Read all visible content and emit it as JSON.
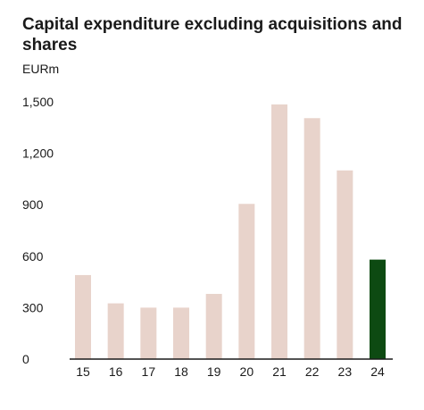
{
  "chart_data": {
    "type": "bar",
    "title": "Capital expenditure excluding acquisitions and shares",
    "ylabel": "EURm",
    "xlabel": "",
    "categories": [
      "15",
      "16",
      "17",
      "18",
      "19",
      "20",
      "21",
      "22",
      "23",
      "24"
    ],
    "values": [
      490,
      325,
      300,
      300,
      380,
      905,
      1485,
      1405,
      1100,
      580
    ],
    "ylim": [
      0,
      1500
    ],
    "yticks": [
      "0",
      "300",
      "600",
      "900",
      "1,200",
      "1,500"
    ],
    "grid": false,
    "legend": "none",
    "colors": {
      "bar": "#e8d3cb",
      "highlight": "#0d4a12",
      "axis": "#1a1a1a"
    },
    "highlight_index": 9
  }
}
